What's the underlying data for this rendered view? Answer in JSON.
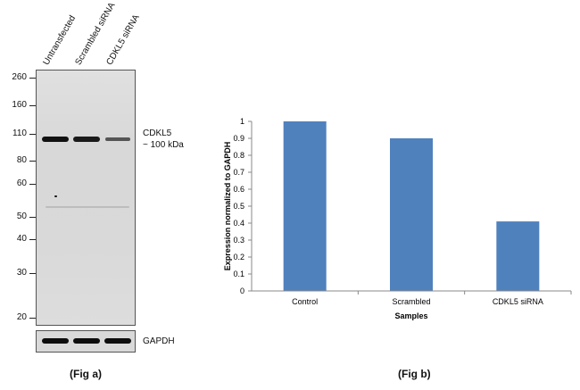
{
  "blot": {
    "lanes": [
      "Untransfected",
      "Scrambled siRNA",
      "CDKL5 siRNA"
    ],
    "markers": [
      "260",
      "160",
      "110",
      "80",
      "60",
      "50",
      "40",
      "30",
      "20"
    ],
    "band_label_1": "CDKL5",
    "band_label_2": "~ 100 kDa",
    "loading_label": "GAPDH",
    "caption": "(Fig a)"
  },
  "chart_data": {
    "type": "bar",
    "categories": [
      "Control",
      "Scrambled",
      "CDKL5 siRNA"
    ],
    "values": [
      1.0,
      0.9,
      0.41
    ],
    "xlabel": "Samples",
    "ylabel": "Expression normalized to GAPDH",
    "ylim": [
      0,
      1
    ],
    "yticks": [
      "0",
      "0.1",
      "0.2",
      "0.3",
      "0.4",
      "0.5",
      "0.6",
      "0.7",
      "0.8",
      "0.9",
      "1"
    ],
    "bar_color": "#4f81bd",
    "grid": false,
    "legend": "none",
    "caption": "(Fig b)"
  }
}
